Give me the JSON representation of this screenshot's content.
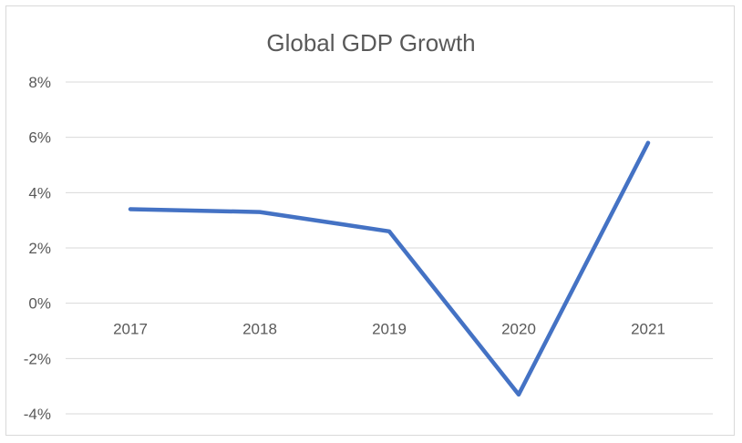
{
  "chart_data": {
    "type": "line",
    "title": "Global GDP Growth",
    "categories": [
      "2017",
      "2018",
      "2019",
      "2020",
      "2021"
    ],
    "series": [
      {
        "values": [
          3.4,
          3.3,
          2.6,
          -3.3,
          5.8
        ],
        "color": "#4472c4"
      }
    ],
    "ylim": [
      -4,
      8
    ],
    "yticks": [
      -4,
      -2,
      0,
      2,
      4,
      6,
      8
    ],
    "ytick_labels": [
      "-4%",
      "-2%",
      "0%",
      "2%",
      "4%",
      "6%",
      "8%"
    ],
    "grid": true,
    "gridline_color": "#d9d9d9",
    "legend": "none"
  }
}
